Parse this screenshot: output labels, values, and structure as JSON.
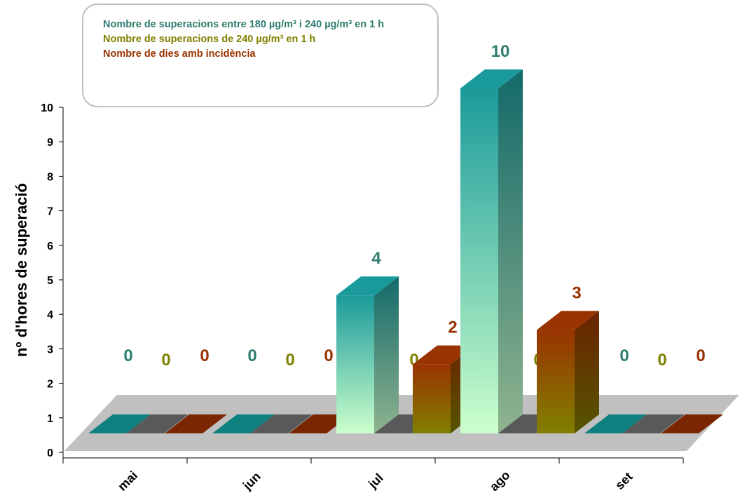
{
  "chart_data": {
    "type": "bar3d",
    "y_label": "nº d'hores de superació",
    "categories": [
      "mai",
      "jun",
      "jul",
      "ago",
      "set"
    ],
    "series": [
      {
        "name": "Nombre de superacions entre 180 µg/m³ i 240 µg/m³ en 1 h",
        "color": "#1a9a9a",
        "values": [
          0,
          0,
          4,
          10,
          0
        ]
      },
      {
        "name": "Nombre de superacions de 240 µg/m³ en 1 h",
        "color": "#808000",
        "values": [
          0,
          0,
          0,
          0,
          0
        ]
      },
      {
        "name": "Nombre de dies amb incidència",
        "color": "#993300",
        "values": [
          0,
          0,
          2,
          3,
          0
        ]
      }
    ],
    "ylim": [
      0,
      10
    ],
    "yticks": [
      0,
      1,
      2,
      3,
      4,
      5,
      6,
      7,
      8,
      9,
      10
    ]
  }
}
